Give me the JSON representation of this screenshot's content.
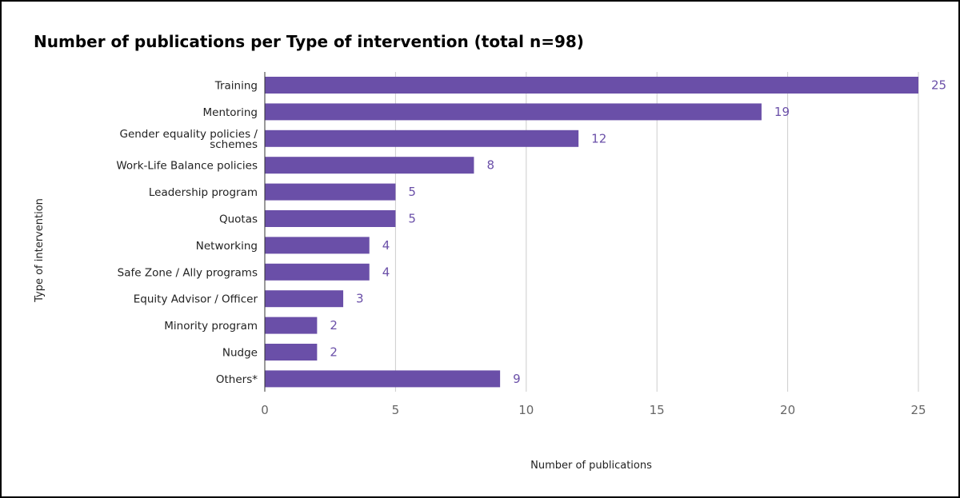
{
  "chart_data": {
    "type": "bar",
    "orientation": "horizontal",
    "title": "Number of publications per Type of intervention (total n=98)",
    "xlabel": "Number of publications",
    "ylabel": "Type of intervention",
    "categories": [
      "Training",
      "Mentoring",
      [
        "Gender equality policies /",
        "schemes"
      ],
      "Work-Life Balance policies",
      "Leadership program",
      "Quotas",
      "Networking",
      "Safe Zone / Ally programs",
      "Equity Advisor / Officer",
      "Minority program",
      "Nudge",
      "Others*"
    ],
    "values": [
      25,
      19,
      12,
      8,
      5,
      5,
      4,
      4,
      3,
      2,
      2,
      9
    ],
    "xlim": [
      0,
      25
    ],
    "xticks": [
      0,
      5,
      10,
      15,
      20,
      25
    ],
    "grid": true,
    "data_labels": true,
    "colors": {
      "bar": "#6a4fa8",
      "label": "#6a4fa8",
      "grid": "#cccccc",
      "axis": "#333333"
    }
  }
}
